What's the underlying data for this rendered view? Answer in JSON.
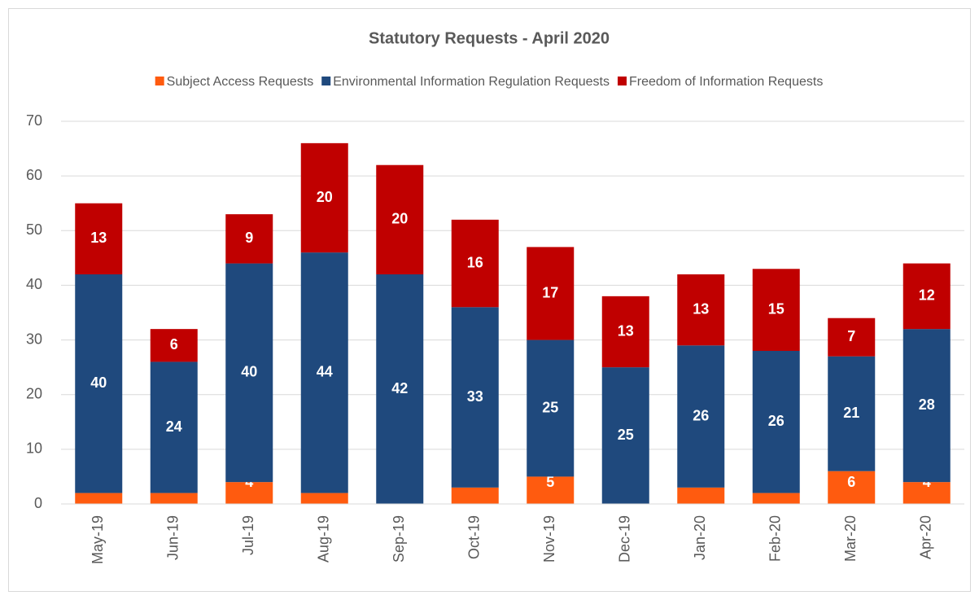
{
  "chart_data": {
    "type": "stacked_bar",
    "title": "Statutory Requests - April 2020",
    "categories": [
      "May-19",
      "Jun-19",
      "Jul-19",
      "Aug-19",
      "Sep-19",
      "Oct-19",
      "Nov-19",
      "Dec-19",
      "Jan-20",
      "Feb-20",
      "Mar-20",
      "Apr-20"
    ],
    "series": [
      {
        "name": "Subject Access Requests",
        "color": "#ff5b0f",
        "values": [
          2,
          2,
          4,
          2,
          0,
          3,
          5,
          0,
          3,
          2,
          6,
          4
        ]
      },
      {
        "name": "Environmental Information Regulation Requests",
        "color": "#1f497d",
        "values": [
          40,
          24,
          40,
          44,
          42,
          33,
          25,
          25,
          26,
          26,
          21,
          28
        ]
      },
      {
        "name": "Freedom of Information Requests",
        "color": "#c00000",
        "values": [
          13,
          6,
          9,
          20,
          20,
          16,
          17,
          13,
          13,
          15,
          7,
          12
        ]
      }
    ],
    "ylim": [
      0,
      70
    ],
    "yticks": [
      0,
      10,
      20,
      30,
      40,
      50,
      60,
      70
    ],
    "grid": true,
    "legend": "top"
  }
}
